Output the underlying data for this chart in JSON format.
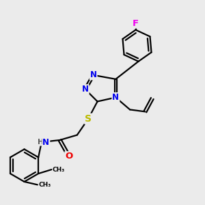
{
  "bg_color": "#ebebeb",
  "bond_color": "#000000",
  "bond_width": 1.6,
  "atom_colors": {
    "N": "#0000ee",
    "O": "#ee0000",
    "S": "#bbbb00",
    "F": "#ee00ee",
    "C": "#000000",
    "H": "#555555"
  },
  "font_size_atom": 8.5,
  "fig_w": 3.0,
  "fig_h": 3.0,
  "dpi": 100
}
